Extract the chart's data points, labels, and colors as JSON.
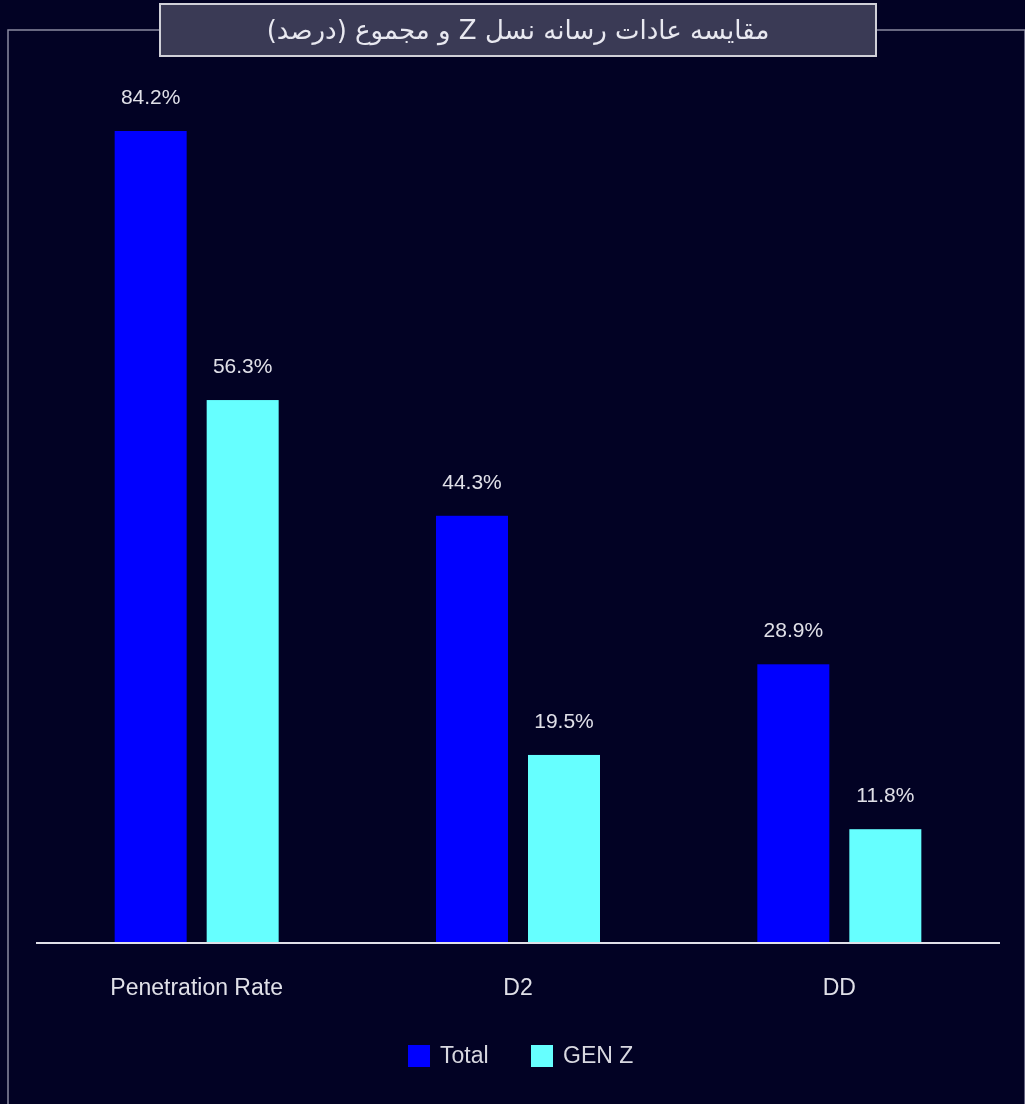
{
  "chart_data": {
    "type": "bar",
    "title": "مقایسه عادات رسانه نسل Z و مجموع (درصد)",
    "categories": [
      "Penetration Rate",
      "D2",
      "DD"
    ],
    "series": [
      {
        "name": "Total",
        "color": "#0000ff",
        "values": [
          84.2,
          44.3,
          28.9
        ],
        "value_labels": [
          "84.2%",
          "44.3%",
          "28.9%"
        ]
      },
      {
        "name": "GEN Z",
        "color": "#66ffff",
        "values": [
          56.3,
          19.5,
          11.8
        ],
        "value_labels": [
          "56.3%",
          "19.5%",
          "11.8%"
        ]
      }
    ],
    "legend": "bottom"
  }
}
